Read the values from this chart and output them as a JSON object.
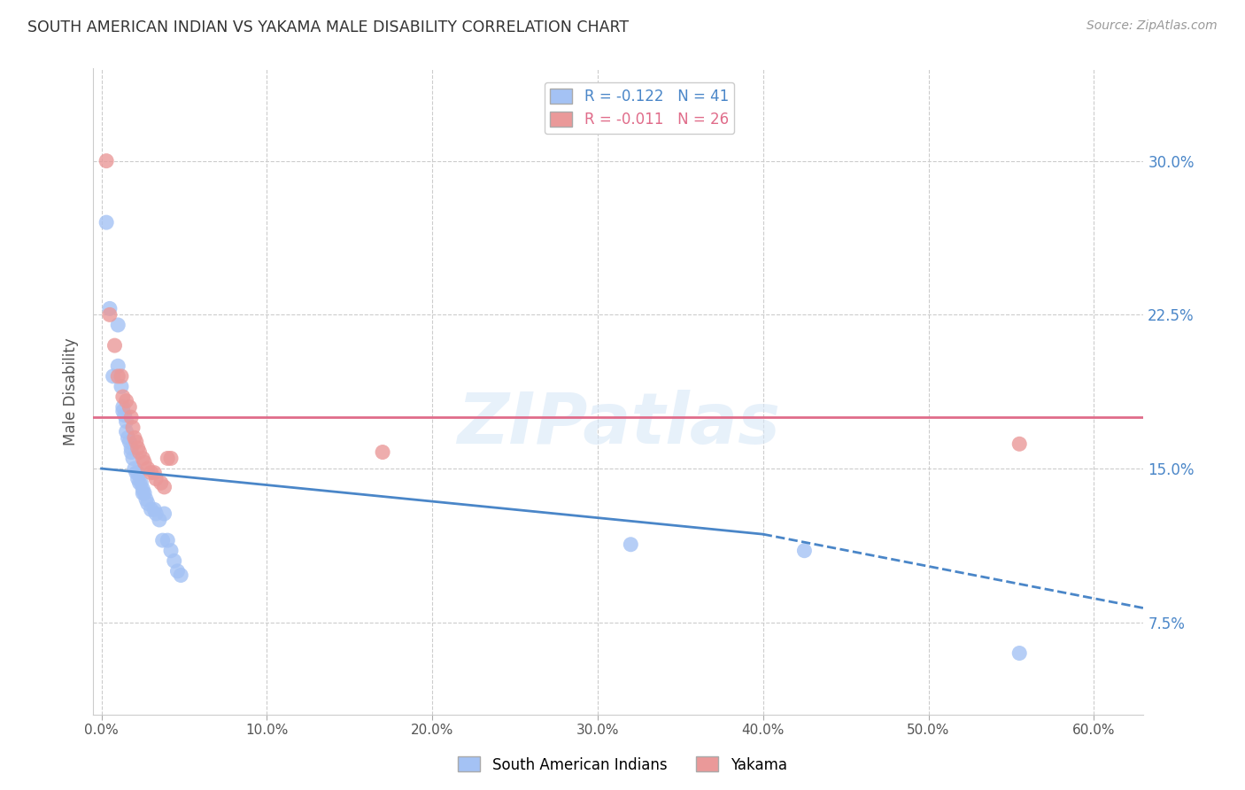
{
  "title": "SOUTH AMERICAN INDIAN VS YAKAMA MALE DISABILITY CORRELATION CHART",
  "source": "Source: ZipAtlas.com",
  "xlabel_vals": [
    0.0,
    0.1,
    0.2,
    0.3,
    0.4,
    0.5,
    0.6
  ],
  "ylabel_vals": [
    0.075,
    0.15,
    0.225,
    0.3
  ],
  "ylabel_labels": [
    "7.5%",
    "15.0%",
    "22.5%",
    "30.0%"
  ],
  "xlim": [
    -0.005,
    0.63
  ],
  "ylim": [
    0.03,
    0.345
  ],
  "ylabel": "Male Disability",
  "watermark": "ZIPatlas",
  "legend_blue_R": "R = -0.122",
  "legend_blue_N": "N = 41",
  "legend_pink_R": "R = -0.011",
  "legend_pink_N": "N = 26",
  "blue_color": "#a4c2f4",
  "pink_color": "#ea9999",
  "blue_line_color": "#4a86c8",
  "pink_line_color": "#e06c8a",
  "right_label_color": "#4a86c8",
  "blue_scatter": [
    [
      0.003,
      0.27
    ],
    [
      0.005,
      0.228
    ],
    [
      0.007,
      0.195
    ],
    [
      0.01,
      0.22
    ],
    [
      0.01,
      0.2
    ],
    [
      0.012,
      0.19
    ],
    [
      0.013,
      0.18
    ],
    [
      0.013,
      0.178
    ],
    [
      0.014,
      0.176
    ],
    [
      0.015,
      0.173
    ],
    [
      0.015,
      0.168
    ],
    [
      0.016,
      0.165
    ],
    [
      0.017,
      0.163
    ],
    [
      0.018,
      0.16
    ],
    [
      0.018,
      0.158
    ],
    [
      0.019,
      0.155
    ],
    [
      0.02,
      0.15
    ],
    [
      0.021,
      0.148
    ],
    [
      0.022,
      0.148
    ],
    [
      0.022,
      0.145
    ],
    [
      0.023,
      0.143
    ],
    [
      0.024,
      0.143
    ],
    [
      0.025,
      0.14
    ],
    [
      0.025,
      0.138
    ],
    [
      0.026,
      0.138
    ],
    [
      0.027,
      0.135
    ],
    [
      0.028,
      0.133
    ],
    [
      0.03,
      0.13
    ],
    [
      0.032,
      0.13
    ],
    [
      0.033,
      0.128
    ],
    [
      0.035,
      0.125
    ],
    [
      0.037,
      0.115
    ],
    [
      0.038,
      0.128
    ],
    [
      0.04,
      0.115
    ],
    [
      0.042,
      0.11
    ],
    [
      0.044,
      0.105
    ],
    [
      0.046,
      0.1
    ],
    [
      0.048,
      0.098
    ],
    [
      0.32,
      0.113
    ],
    [
      0.425,
      0.11
    ],
    [
      0.555,
      0.06
    ]
  ],
  "pink_scatter": [
    [
      0.003,
      0.3
    ],
    [
      0.005,
      0.225
    ],
    [
      0.008,
      0.21
    ],
    [
      0.01,
      0.195
    ],
    [
      0.012,
      0.195
    ],
    [
      0.013,
      0.185
    ],
    [
      0.015,
      0.183
    ],
    [
      0.017,
      0.18
    ],
    [
      0.018,
      0.175
    ],
    [
      0.019,
      0.17
    ],
    [
      0.02,
      0.165
    ],
    [
      0.021,
      0.163
    ],
    [
      0.022,
      0.16
    ],
    [
      0.023,
      0.158
    ],
    [
      0.025,
      0.155
    ],
    [
      0.026,
      0.153
    ],
    [
      0.028,
      0.15
    ],
    [
      0.03,
      0.148
    ],
    [
      0.032,
      0.148
    ],
    [
      0.033,
      0.145
    ],
    [
      0.036,
      0.143
    ],
    [
      0.038,
      0.141
    ],
    [
      0.04,
      0.155
    ],
    [
      0.042,
      0.155
    ],
    [
      0.17,
      0.158
    ],
    [
      0.555,
      0.162
    ]
  ],
  "blue_trend_x_start": 0.0,
  "blue_trend_x_solid_end": 0.4,
  "blue_trend_x_end": 0.63,
  "blue_trend_y_start": 0.15,
  "blue_trend_y_solid_end": 0.118,
  "blue_trend_y_end": 0.082,
  "pink_trend_y": 0.175,
  "dpi": 100,
  "figsize": [
    14.06,
    8.92
  ]
}
